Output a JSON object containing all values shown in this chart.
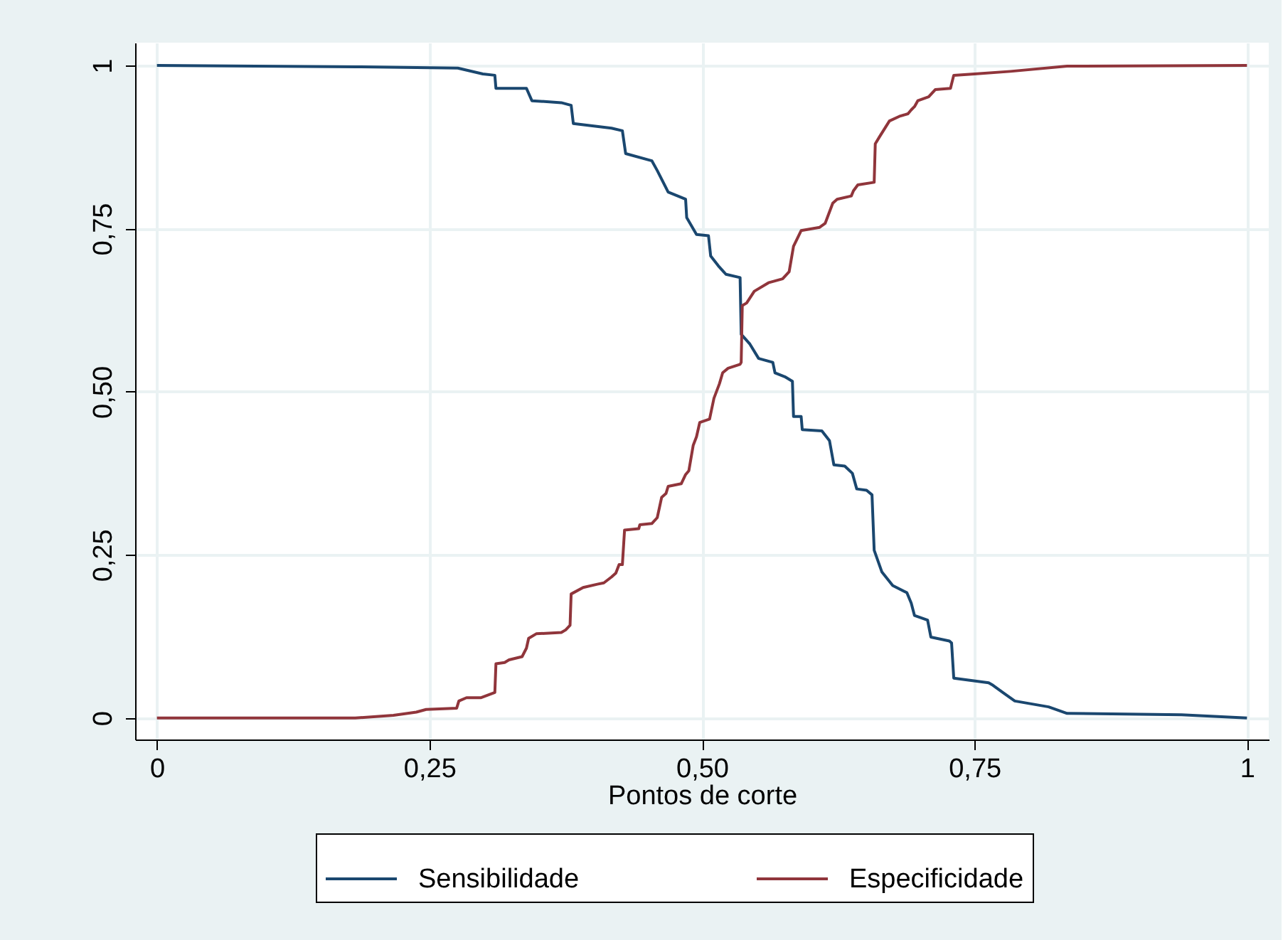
{
  "chart_data": {
    "type": "line",
    "xlabel": "Pontos de corte",
    "xlim": [
      -0.02,
      1.02
    ],
    "ylim": [
      -0.033,
      1.035
    ],
    "xticks": [
      0,
      {
        "value": 0.25,
        "label": "0,25"
      },
      {
        "value": 0.5,
        "label": "0,50"
      },
      {
        "value": 0.75,
        "label": "0,75"
      },
      1
    ],
    "yticks": [
      0,
      {
        "value": 0.25,
        "label": "0,25"
      },
      {
        "value": 0.5,
        "label": "0,50"
      },
      {
        "value": 0.75,
        "label": "0,75"
      },
      1
    ],
    "grid": true,
    "legend": "bottom",
    "line_style": "solid",
    "marker": "none",
    "series": [
      {
        "name": "Sensibilidade",
        "color": "#1a476f",
        "x": [
          0,
          0.182,
          0.276,
          0.299,
          0.31,
          0.311,
          0.339,
          0.344,
          0.371,
          0.38,
          0.382,
          0.417,
          0.427,
          0.43,
          0.454,
          0.459,
          0.469,
          0.485,
          0.486,
          0.495,
          0.506,
          0.508,
          0.515,
          0.522,
          0.535,
          0.536,
          0.544,
          0.552,
          0.565,
          0.567,
          0.576,
          0.583,
          0.584,
          0.591,
          0.592,
          0.61,
          0.617,
          0.621,
          0.631,
          0.638,
          0.642,
          0.651,
          0.656,
          0.658,
          0.665,
          0.675,
          0.688,
          0.692,
          0.695,
          0.707,
          0.71,
          0.727,
          0.729,
          0.731,
          0.763,
          0.767,
          0.776,
          0.787,
          0.818,
          0.835,
          0.94,
          1
        ],
        "values": [
          1,
          0.998,
          0.996,
          0.987,
          0.985,
          0.965,
          0.965,
          0.946,
          0.943,
          0.939,
          0.911,
          0.904,
          0.9,
          0.865,
          0.854,
          0.839,
          0.806,
          0.795,
          0.767,
          0.741,
          0.739,
          0.708,
          0.693,
          0.68,
          0.675,
          0.588,
          0.573,
          0.551,
          0.545,
          0.529,
          0.523,
          0.516,
          0.462,
          0.462,
          0.442,
          0.44,
          0.425,
          0.388,
          0.386,
          0.375,
          0.351,
          0.349,
          0.342,
          0.257,
          0.224,
          0.203,
          0.192,
          0.176,
          0.157,
          0.15,
          0.124,
          0.118,
          0.115,
          0.061,
          0.054,
          0.05,
          0.039,
          0.026,
          0.017,
          0.007,
          0.005,
          0
        ]
      },
      {
        "name": "Especificidade",
        "color": "#90353b",
        "x": [
          0,
          0.182,
          0.217,
          0.238,
          0.247,
          0.275,
          0.277,
          0.284,
          0.297,
          0.31,
          0.311,
          0.319,
          0.323,
          0.335,
          0.339,
          0.341,
          0.348,
          0.371,
          0.375,
          0.379,
          0.38,
          0.391,
          0.404,
          0.41,
          0.417,
          0.421,
          0.424,
          0.427,
          0.429,
          0.442,
          0.443,
          0.454,
          0.459,
          0.463,
          0.467,
          0.469,
          0.481,
          0.485,
          0.488,
          0.492,
          0.495,
          0.498,
          0.507,
          0.511,
          0.516,
          0.519,
          0.524,
          0.535,
          0.536,
          0.537,
          0.541,
          0.548,
          0.561,
          0.574,
          0.58,
          0.584,
          0.591,
          0.608,
          0.613,
          0.62,
          0.624,
          0.637,
          0.639,
          0.643,
          0.658,
          0.659,
          0.663,
          0.672,
          0.681,
          0.689,
          0.692,
          0.695,
          0.698,
          0.708,
          0.714,
          0.728,
          0.731,
          0.75,
          0.783,
          0.835,
          1
        ],
        "values": [
          0,
          0,
          0.004,
          0.009,
          0.013,
          0.015,
          0.026,
          0.031,
          0.031,
          0.039,
          0.083,
          0.085,
          0.089,
          0.094,
          0.107,
          0.122,
          0.129,
          0.131,
          0.135,
          0.142,
          0.19,
          0.2,
          0.205,
          0.207,
          0.216,
          0.222,
          0.235,
          0.235,
          0.288,
          0.29,
          0.296,
          0.298,
          0.307,
          0.338,
          0.344,
          0.355,
          0.359,
          0.373,
          0.379,
          0.418,
          0.431,
          0.453,
          0.458,
          0.49,
          0.512,
          0.529,
          0.536,
          0.542,
          0.545,
          0.632,
          0.636,
          0.654,
          0.667,
          0.673,
          0.684,
          0.723,
          0.747,
          0.752,
          0.758,
          0.789,
          0.795,
          0.8,
          0.808,
          0.817,
          0.821,
          0.88,
          0.891,
          0.915,
          0.922,
          0.926,
          0.932,
          0.937,
          0.946,
          0.952,
          0.963,
          0.965,
          0.985,
          0.987,
          0.991,
          0.999,
          1
        ]
      }
    ]
  }
}
